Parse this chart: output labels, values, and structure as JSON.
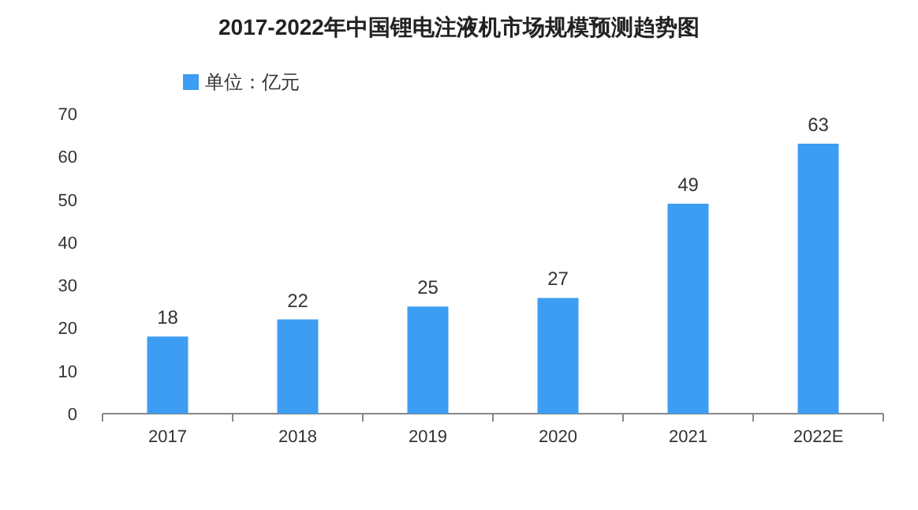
{
  "chart_data": {
    "type": "bar",
    "title": "2017-2022年中国锂电注液机市场规模预测趋势图",
    "categories": [
      "2017",
      "2018",
      "2019",
      "2020",
      "2021",
      "2022E"
    ],
    "series": [
      {
        "name": "单位：亿元",
        "color": "#3d9df2",
        "values": [
          18,
          22,
          25,
          27,
          49,
          63
        ]
      }
    ],
    "ylim": [
      0,
      70
    ],
    "yticks": [
      0,
      10,
      20,
      30,
      40,
      50,
      60,
      70
    ],
    "data_labels": true,
    "legend": "top left",
    "grid": false
  }
}
